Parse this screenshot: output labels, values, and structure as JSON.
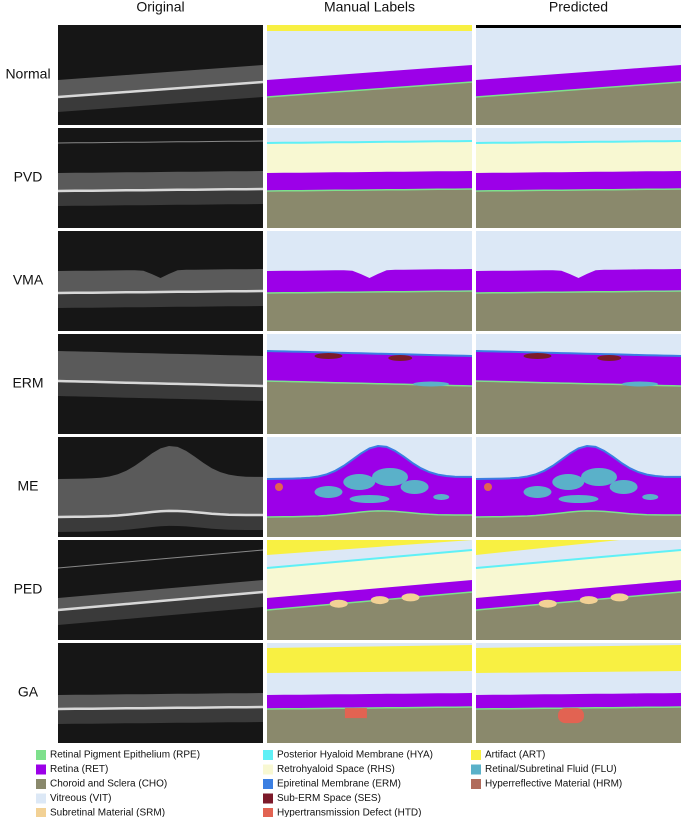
{
  "header": {
    "columns": [
      "Original",
      "Manual Labels",
      "Predicted"
    ]
  },
  "rows": [
    "Normal",
    "PVD",
    "VMA",
    "ERM",
    "ME",
    "PED",
    "GA"
  ],
  "legend": [
    {
      "label": "Retinal Pigment Epithelium (RPE)",
      "color": "#7ee08c"
    },
    {
      "label": "Retina (RET)",
      "color": "#9c00e8"
    },
    {
      "label": "Choroid and Sclera (CHO)",
      "color": "#8a896c"
    },
    {
      "label": "Vitreous (VIT)",
      "color": "#dce8f6"
    },
    {
      "label": "Subretinal Material (SRM)",
      "color": "#f2d195"
    },
    {
      "label": "Posterior Hyaloid Membrane (HYA)",
      "color": "#5ff0f6"
    },
    {
      "label": "Retrohyaloid Space (RHS)",
      "color": "#f8f8d2"
    },
    {
      "label": "Epiretinal Membrane (ERM)",
      "color": "#3b7fe2"
    },
    {
      "label": "Sub-ERM Space (SES)",
      "color": "#7c1a2a"
    },
    {
      "label": "Hypertransmission Defect (HTD)",
      "color": "#e26352"
    },
    {
      "label": "Artifact (ART)",
      "color": "#f8f042"
    },
    {
      "label": "Retinal/Subretinal Fluid (FLU)",
      "color": "#5ab1c9"
    },
    {
      "label": "Hyperreflective Material (HRM)",
      "color": "#b06b5b"
    }
  ]
}
